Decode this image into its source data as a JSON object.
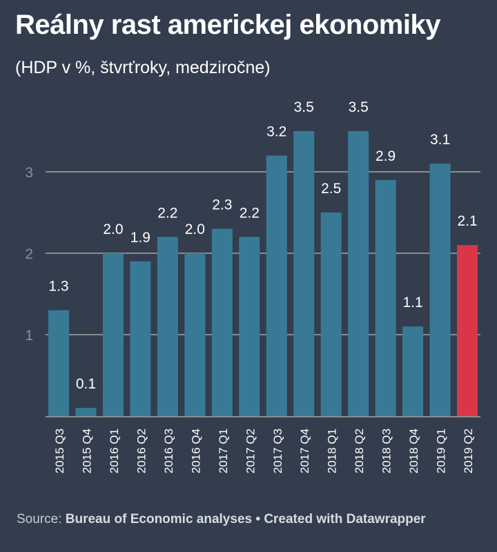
{
  "header": {
    "title": "Reálny rast americkej ekonomiky",
    "subtitle": "(HDP v %, štvrťroky, medziročne)"
  },
  "footer": {
    "source_label": "Source:",
    "source_name": "Bureau of Economic analyses",
    "separator": "•",
    "credit": "Created with Datawrapper"
  },
  "colors": {
    "background": "#333d4d",
    "bar": "#387a96",
    "highlight": "#d93748",
    "grid": "#8a8d90",
    "tick_text": "#8c9095",
    "label_text": "#ffffff"
  },
  "chart_data": {
    "type": "bar",
    "title": "Reálny rast americkej ekonomiky",
    "subtitle": "(HDP v %, štvrťroky, medziročne)",
    "xlabel": "",
    "ylabel": "",
    "ylim": [
      0,
      3.5
    ],
    "yticks": [
      1,
      2,
      3
    ],
    "grid": true,
    "categories": [
      "2015 Q3",
      "2015 Q4",
      "2016 Q1",
      "2016 Q2",
      "2016 Q3",
      "2016 Q4",
      "2017 Q1",
      "2017 Q2",
      "2017 Q3",
      "2017 Q4",
      "2018 Q1",
      "2018 Q2",
      "2018 Q3",
      "2018 Q4",
      "2019 Q1",
      "2019 Q2"
    ],
    "values": [
      1.3,
      0.1,
      2.0,
      1.9,
      2.2,
      2.0,
      2.3,
      2.2,
      3.2,
      3.5,
      2.5,
      3.5,
      2.9,
      1.1,
      3.1,
      2.1
    ],
    "value_labels": [
      "1.3",
      "0.1",
      "2.0",
      "1.9",
      "2.2",
      "2.0",
      "2.3",
      "2.2",
      "3.2",
      "3.5",
      "2.5",
      "3.5",
      "2.9",
      "1.1",
      "3.1",
      "2.1"
    ],
    "highlighted_category": "2019 Q2"
  }
}
